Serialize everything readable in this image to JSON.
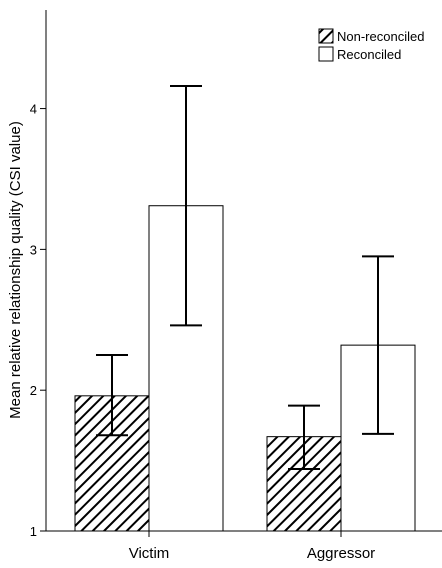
{
  "chart_data": {
    "type": "bar",
    "categories": [
      "Victim",
      "Aggressor"
    ],
    "series": [
      {
        "name": "Non-reconciled",
        "fill": "hatched",
        "values": [
          1.96,
          1.67
        ],
        "err_low": [
          1.68,
          1.44
        ],
        "err_high": [
          2.25,
          1.89
        ]
      },
      {
        "name": "Reconciled",
        "fill": "white",
        "values": [
          3.31,
          2.32
        ],
        "err_low": [
          2.46,
          1.69
        ],
        "err_high": [
          4.16,
          2.95
        ]
      }
    ],
    "xlabel": "",
    "ylabel": "Mean relative relationship quality (CSI value)",
    "ylim": [
      1,
      4.7
    ],
    "yticks": [
      1,
      2,
      3,
      4
    ],
    "grid": false,
    "legend_position": "top-right",
    "colors": {
      "axis": "#000000",
      "bar_fill_light": "#ffffff",
      "hatch": "#000000"
    }
  }
}
